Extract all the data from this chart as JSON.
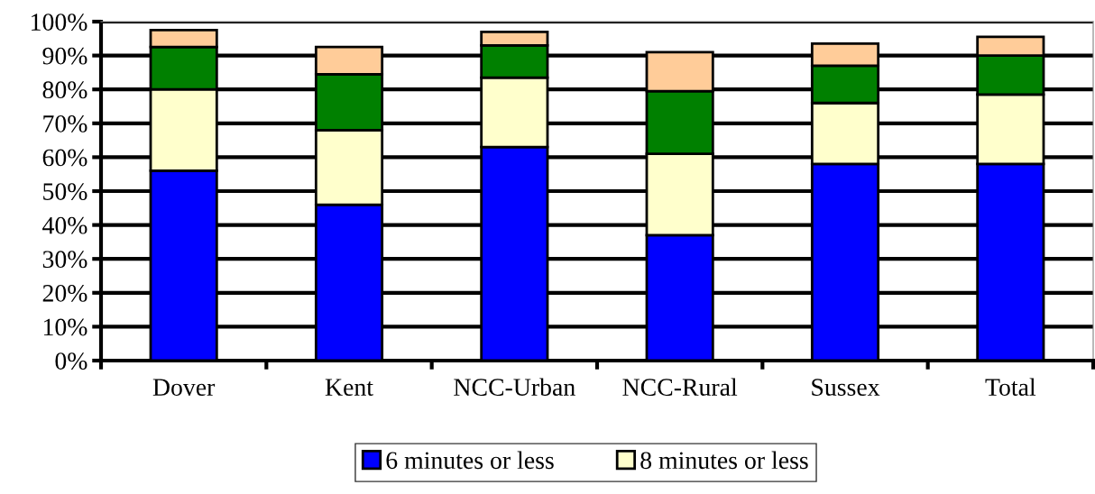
{
  "chart_data": {
    "type": "bar",
    "stacked": true,
    "categories": [
      "Dover",
      "Kent",
      "NCC-Urban",
      "NCC-Rural",
      "Sussex",
      "Total"
    ],
    "series": [
      {
        "name": "6 minutes or less",
        "color": "#0000ff",
        "values": [
          56,
          46,
          63,
          37,
          58,
          58
        ]
      },
      {
        "name": "8 minutes or less",
        "color": "#ffffcc",
        "values": [
          24,
          22,
          20.5,
          24,
          18,
          20.5
        ]
      },
      {
        "color": "#008000",
        "values": [
          12.5,
          16.5,
          9.5,
          18.5,
          11,
          11.5
        ]
      },
      {
        "color": "#ffcc99",
        "values": [
          5,
          8,
          4,
          11.5,
          6.5,
          5.5
        ]
      }
    ],
    "ylim": [
      0,
      100
    ],
    "yticks": [
      {
        "value": 0,
        "label": "0%"
      },
      {
        "value": 10,
        "label": "10%"
      },
      {
        "value": 20,
        "label": "20%"
      },
      {
        "value": 30,
        "label": "30%"
      },
      {
        "value": 40,
        "label": "40%"
      },
      {
        "value": 50,
        "label": "50%"
      },
      {
        "value": 60,
        "label": "60%"
      },
      {
        "value": 70,
        "label": "70%"
      },
      {
        "value": 80,
        "label": "80%"
      },
      {
        "value": 90,
        "label": "90%"
      },
      {
        "value": 100,
        "label": "100%"
      }
    ],
    "grid": "y",
    "legend": "bottom"
  }
}
